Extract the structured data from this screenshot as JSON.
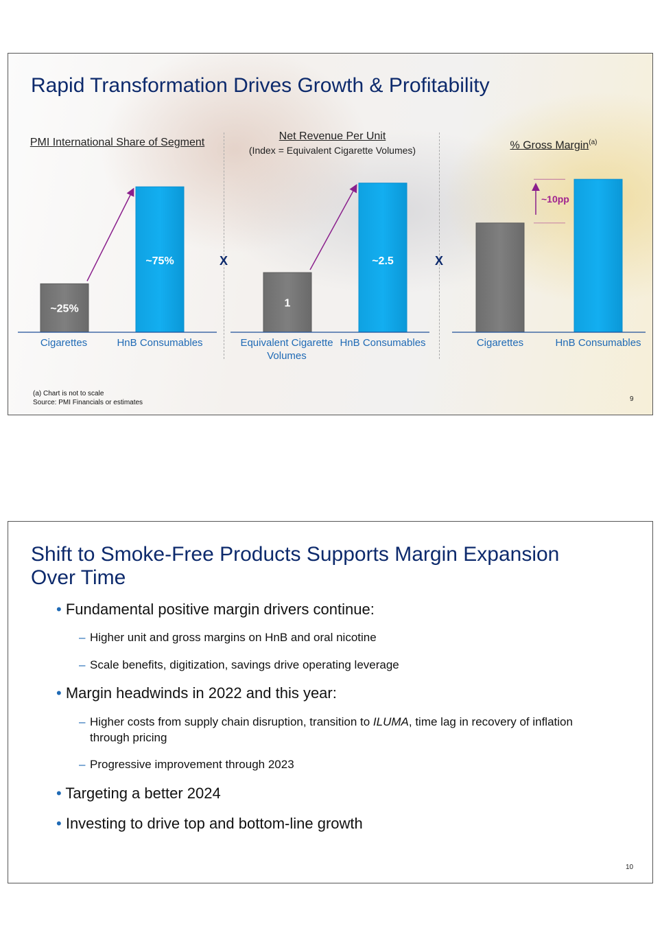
{
  "slide1": {
    "title": "Rapid Transformation Drives Growth & Profitability",
    "panels": [
      {
        "header": "PMI International Share of Segment"
      },
      {
        "header": "Net Revenue Per Unit",
        "subheader": "(Index = Equivalent Cigarette Volumes)"
      },
      {
        "header": "% Gross Margin",
        "superscript": "(a)"
      }
    ],
    "operator_symbol": "X",
    "annotation": "~10pp",
    "footnote": "(a) Chart is not to scale",
    "source": "Source: PMI Financials or estimates",
    "page_number": "9",
    "colors": {
      "gray_bar": "#7f7f7f",
      "blue_bar": "#13aef0",
      "arrow": "#8a1f8c",
      "pp_text": "#a0228f",
      "category_text": "#1f6ab5",
      "title": "#0d2a6c"
    }
  },
  "chart_data": [
    {
      "type": "bar",
      "title": "PMI International Share of Segment",
      "categories": [
        "Cigarettes",
        "HnB Consumables"
      ],
      "values": [
        25,
        75
      ],
      "data_labels": [
        "~25%",
        "~75%"
      ],
      "ylim": [
        0,
        80
      ]
    },
    {
      "type": "bar",
      "title": "Net Revenue Per Unit",
      "subtitle": "(Index = Equivalent Cigarette Volumes)",
      "categories": [
        "Equivalent Cigarette Volumes",
        "HnB Consumables"
      ],
      "values": [
        1,
        2.5
      ],
      "data_labels": [
        "1",
        "~2.5"
      ],
      "ylim": [
        0,
        2.6
      ]
    },
    {
      "type": "bar",
      "title": "% Gross Margin",
      "categories": [
        "Cigarettes",
        "HnB Consumables"
      ],
      "values": [
        100,
        140
      ],
      "data_labels": [
        "",
        ""
      ],
      "ylim": [
        0,
        142
      ],
      "annotation": "~10pp"
    }
  ],
  "slide2": {
    "title": "Shift to Smoke-Free Products Supports Margin Expansion Over Time",
    "bullets": [
      {
        "text": "Fundamental positive margin drivers continue:",
        "subs": [
          "Higher unit and gross margins on HnB and oral nicotine",
          "Scale benefits, digitization, savings drive operating leverage"
        ]
      },
      {
        "text": "Margin headwinds in 2022 and this year:",
        "subs": [
          "Higher costs from supply chain disruption, transition to ",
          "Progressive improvement through 2023"
        ]
      },
      {
        "text": "Targeting a better 2024",
        "subs": []
      },
      {
        "text": "Investing to drive top and bottom-line growth",
        "subs": []
      }
    ],
    "iluma_word": "ILUMA",
    "iluma_tail": ", time lag in recovery of inflation through pricing",
    "bullet_symbol": "•",
    "dash_symbol": "–",
    "page_number": "10"
  }
}
